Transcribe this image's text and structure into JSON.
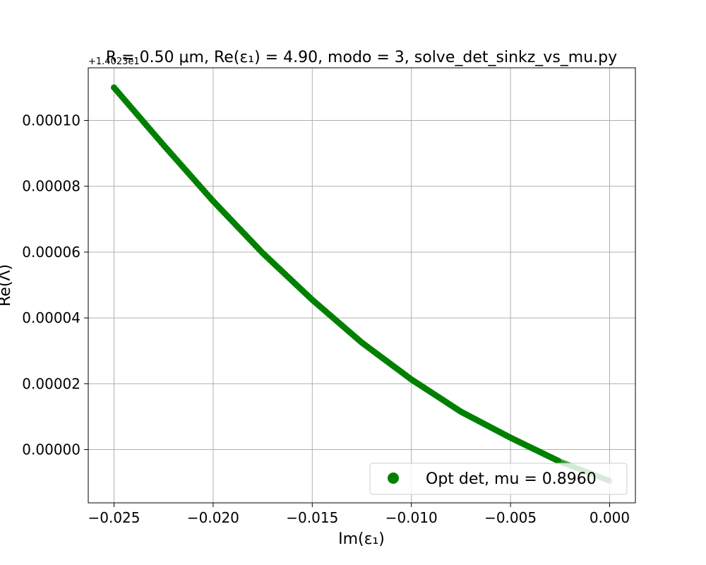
{
  "chart_data": {
    "type": "scatter",
    "title": "R = 0.50 μm, Re(ε₁) = 4.90, modo = 3, solve_det_sinkz_vs_mu.py",
    "xlabel": "Im(ε₁)",
    "ylabel": "Re(Λ)",
    "offset_text": "+1.4023e1",
    "xlim": [
      -0.0263,
      0.0013
    ],
    "ylim": [
      -1.62e-05,
      0.000116
    ],
    "x_ticks": [
      -0.025,
      -0.02,
      -0.015,
      -0.01,
      -0.005,
      0.0
    ],
    "x_tick_labels": [
      "−0.025",
      "−0.020",
      "−0.015",
      "−0.010",
      "−0.005",
      "0.000"
    ],
    "y_ticks": [
      0.0,
      2e-05,
      4e-05,
      6e-05,
      8e-05,
      0.0001
    ],
    "y_tick_labels": [
      "0.00000",
      "0.00002",
      "0.00004",
      "0.00006",
      "0.00008",
      "0.00010"
    ],
    "grid": true,
    "legend_position": "lower right",
    "series": [
      {
        "name": "Opt det, mu = 0.8960",
        "color": "#008000",
        "marker": "circle",
        "x_range": [
          -0.025,
          0.0
        ],
        "y_end_values": [
          0.00011,
          -9.5e-06
        ],
        "x": [
          -0.025,
          -0.0225,
          -0.02,
          -0.0175,
          -0.015,
          -0.0125,
          -0.01,
          -0.0075,
          -0.005,
          -0.0025,
          0.0
        ],
        "y": [
          0.00011,
          9.25e-05,
          7.55e-05,
          5.97e-05,
          4.55e-05,
          3.25e-05,
          2.13e-05,
          1.15e-05,
          3.6e-06,
          -3.7e-06,
          -9.5e-06
        ]
      }
    ]
  }
}
